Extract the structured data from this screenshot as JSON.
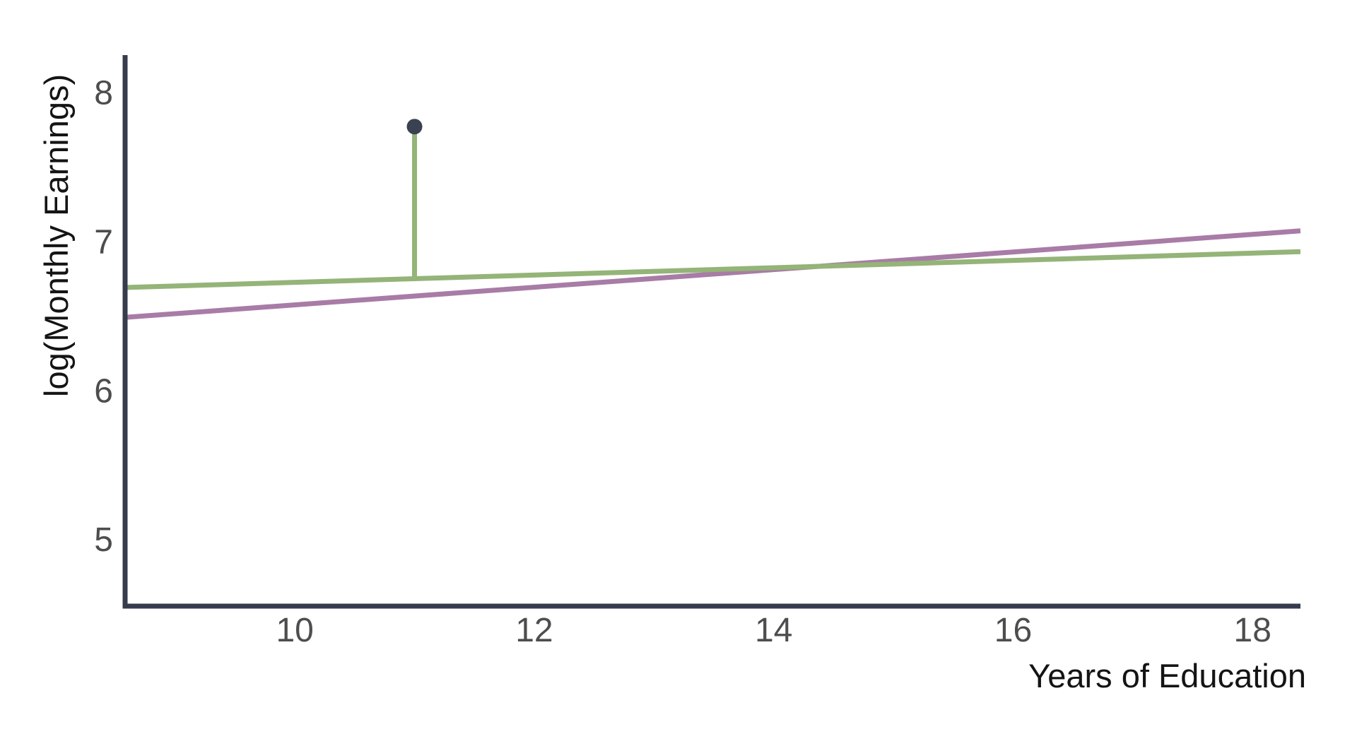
{
  "chart_data": {
    "type": "line",
    "title": "",
    "xlabel": "Years of Education",
    "ylabel": "log(Monthly Earnings)",
    "xlim": [
      8.6,
      18.4
    ],
    "ylim": [
      4.55,
      8.25
    ],
    "x_ticks": [
      10,
      12,
      14,
      16,
      18
    ],
    "y_ticks": [
      5,
      6,
      7,
      8
    ],
    "grid": false,
    "legend": "none",
    "series": [
      {
        "name": "purple-fit-line",
        "color": "#a87ca6",
        "x": [
          8.6,
          18.4
        ],
        "y": [
          6.49,
          7.07
        ]
      },
      {
        "name": "green-fit-line",
        "color": "#94b478",
        "x": [
          8.6,
          18.4
        ],
        "y": [
          6.69,
          6.93
        ]
      }
    ],
    "annotations": {
      "point": {
        "x": 11,
        "y": 7.77,
        "color": "#3a4150"
      },
      "residual_segment": {
        "x": 11,
        "y_from": 6.75,
        "y_to": 7.77,
        "color": "#94b478"
      }
    }
  },
  "colors": {
    "axis": "#363c4b",
    "tick_label": "#4d4d4d",
    "axis_title": "#141414",
    "background": "#ffffff"
  }
}
